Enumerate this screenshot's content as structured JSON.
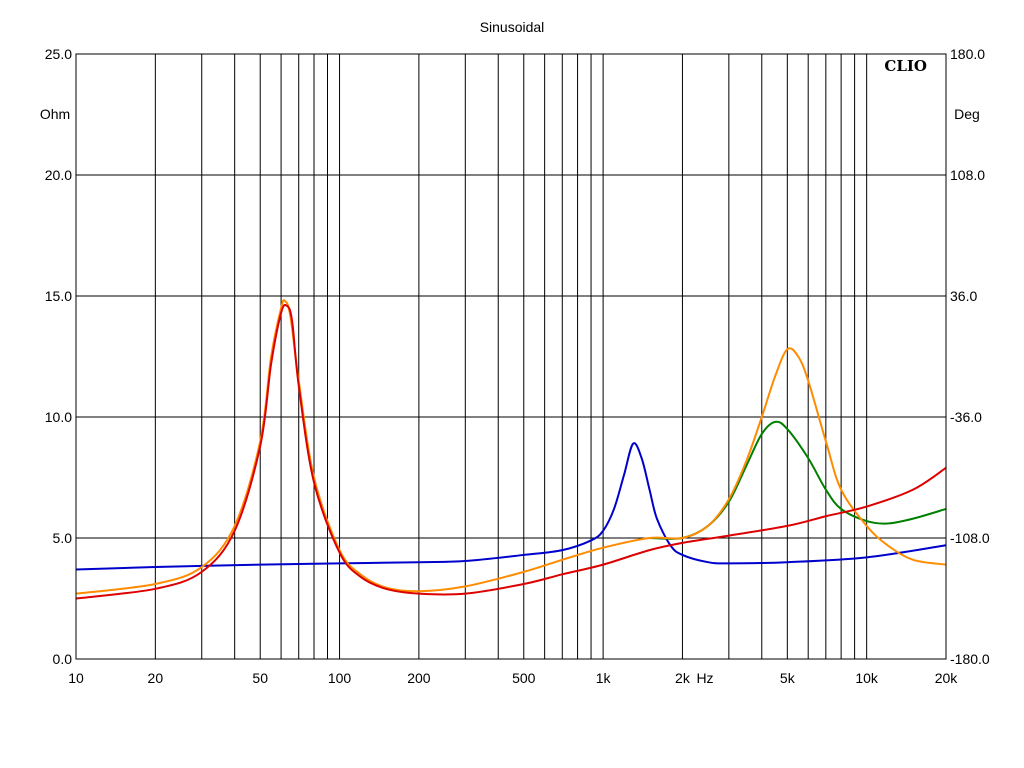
{
  "chart_data": {
    "type": "line",
    "title": "Sinusoidal",
    "brand": "CLIO",
    "x_scale": "log",
    "xlim": [
      10,
      20000
    ],
    "x_unit": "Hz",
    "x_ticks": [
      {
        "value": 10,
        "label": "10"
      },
      {
        "value": 20,
        "label": "20"
      },
      {
        "value": 50,
        "label": "50"
      },
      {
        "value": 100,
        "label": "100"
      },
      {
        "value": 200,
        "label": "200"
      },
      {
        "value": 500,
        "label": "500"
      },
      {
        "value": 1000,
        "label": "1k"
      },
      {
        "value": 2000,
        "label": "2k"
      },
      {
        "value": 5000,
        "label": "5k"
      },
      {
        "value": 10000,
        "label": "10k"
      },
      {
        "value": 20000,
        "label": "20k"
      }
    ],
    "y_left": {
      "label": "Ohm",
      "ylim": [
        0,
        25
      ],
      "ticks": [
        "0.0",
        "5.0",
        "10.0",
        "15.0",
        "20.0",
        "25.0"
      ]
    },
    "y_right": {
      "label": "Deg",
      "ylim": [
        -180,
        180
      ],
      "ticks": [
        "-180.0",
        "-108.0",
        "-36.0",
        "36.0",
        "108.0",
        "180.0"
      ]
    },
    "grid": true,
    "series": [
      {
        "color": "#0000cc",
        "x": [
          10,
          20,
          50,
          100,
          200,
          300,
          500,
          700,
          900,
          1000,
          1100,
          1200,
          1300,
          1400,
          1500,
          1600,
          1800,
          2000,
          2500,
          3000,
          5000,
          10000,
          20000
        ],
        "y": [
          3.7,
          3.8,
          3.9,
          3.95,
          4.0,
          4.05,
          4.3,
          4.5,
          4.9,
          5.3,
          6.2,
          7.6,
          8.9,
          8.3,
          7.0,
          5.8,
          4.7,
          4.3,
          4.0,
          3.95,
          4.0,
          4.2,
          4.7
        ]
      },
      {
        "color": "#008000",
        "x": [
          1500,
          2000,
          2500,
          3000,
          3500,
          4000,
          4500,
          5000,
          6000,
          7000,
          8000,
          10000,
          12000,
          15000,
          20000
        ],
        "y": [
          5.0,
          5.0,
          5.5,
          6.5,
          8.0,
          9.3,
          9.8,
          9.5,
          8.3,
          7.0,
          6.2,
          5.7,
          5.6,
          5.8,
          6.2
        ]
      },
      {
        "color": "#ff8c00",
        "x": [
          10,
          20,
          30,
          40,
          50,
          55,
          60,
          62,
          65,
          70,
          80,
          100,
          120,
          150,
          200,
          300,
          500,
          700,
          1000,
          1500,
          2000,
          2500,
          3000,
          3500,
          4000,
          4500,
          5000,
          5500,
          6000,
          7000,
          8000,
          10000,
          12000,
          15000,
          20000
        ],
        "y": [
          2.7,
          3.1,
          3.8,
          5.5,
          9.0,
          12.5,
          14.5,
          14.8,
          14.2,
          11.5,
          7.5,
          4.5,
          3.5,
          2.95,
          2.8,
          3.0,
          3.6,
          4.1,
          4.6,
          5.0,
          5.0,
          5.5,
          6.6,
          8.2,
          10.0,
          11.7,
          12.8,
          12.5,
          11.5,
          9.0,
          7.0,
          5.5,
          4.7,
          4.1,
          3.9
        ]
      },
      {
        "color": "#dd0000",
        "x": [
          10,
          20,
          30,
          40,
          50,
          55,
          60,
          63,
          66,
          70,
          80,
          100,
          120,
          150,
          200,
          300,
          500,
          700,
          1000,
          1500,
          2000,
          3000,
          5000,
          7000,
          10000,
          15000,
          20000
        ],
        "y": [
          2.5,
          2.9,
          3.6,
          5.3,
          8.8,
          12.2,
          14.3,
          14.6,
          14.0,
          11.3,
          7.3,
          4.4,
          3.4,
          2.9,
          2.7,
          2.7,
          3.1,
          3.5,
          3.9,
          4.5,
          4.8,
          5.1,
          5.5,
          5.9,
          6.3,
          7.0,
          7.9
        ]
      }
    ]
  }
}
